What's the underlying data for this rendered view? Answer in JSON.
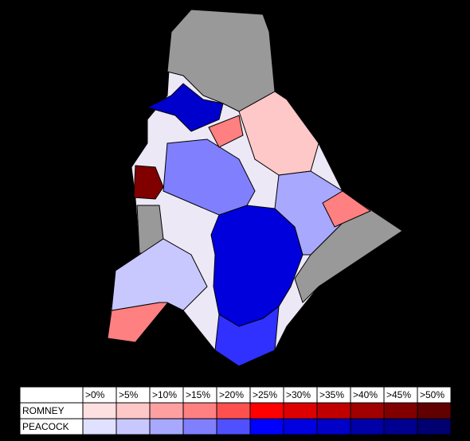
{
  "legend": {
    "thresholds": [
      ">0%",
      ">5%",
      ">10%",
      ">15%",
      ">20%",
      ">25%",
      ">30%",
      ">35%",
      ">40%",
      ">45%",
      ">50%"
    ],
    "rows": [
      {
        "label": "ROMNEY",
        "colors": [
          "#ffe0e0",
          "#ffc8c8",
          "#ffa0a0",
          "#ff8080",
          "#ff5050",
          "#ff0000",
          "#dd0000",
          "#c00000",
          "#a00000",
          "#800000",
          "#600000"
        ]
      },
      {
        "label": "PEACOCK",
        "colors": [
          "#e0e0ff",
          "#c8c8ff",
          "#a8a8ff",
          "#8080ff",
          "#5050ff",
          "#0000ff",
          "#0000e0",
          "#0000c8",
          "#0000a8",
          "#000090",
          "#000070"
        ]
      }
    ]
  }
}
